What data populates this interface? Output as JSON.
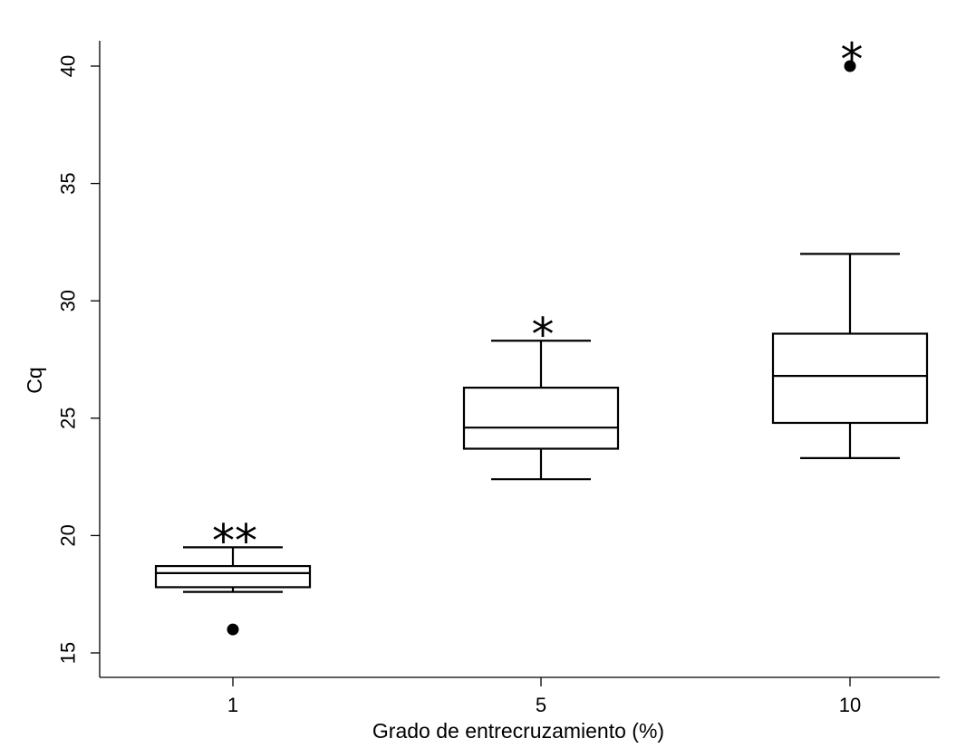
{
  "chart_data": {
    "type": "boxplot",
    "title": "",
    "xlabel": "Grado de entrecruzamiento (%)",
    "ylabel": "Cq",
    "categories": [
      "1",
      "5",
      "10"
    ],
    "ylim": [
      14.5,
      41.2
    ],
    "yticks": [
      "15",
      "20",
      "25",
      "30",
      "35",
      "40"
    ],
    "grid": false,
    "boxes": [
      {
        "category": "1",
        "whisker_low": 17.6,
        "q1": 17.8,
        "median": 18.4,
        "q3": 18.7,
        "whisker_high": 19.5,
        "outliers": [
          16.0
        ],
        "significance": "**"
      },
      {
        "category": "5",
        "whisker_low": 22.4,
        "q1": 23.7,
        "median": 24.6,
        "q3": 26.3,
        "whisker_high": 28.3,
        "outliers": [],
        "significance": "*"
      },
      {
        "category": "10",
        "whisker_low": 23.3,
        "q1": 24.8,
        "median": 26.8,
        "q3": 28.6,
        "whisker_high": 32.0,
        "outliers": [
          40.0
        ],
        "significance": "*"
      }
    ]
  }
}
